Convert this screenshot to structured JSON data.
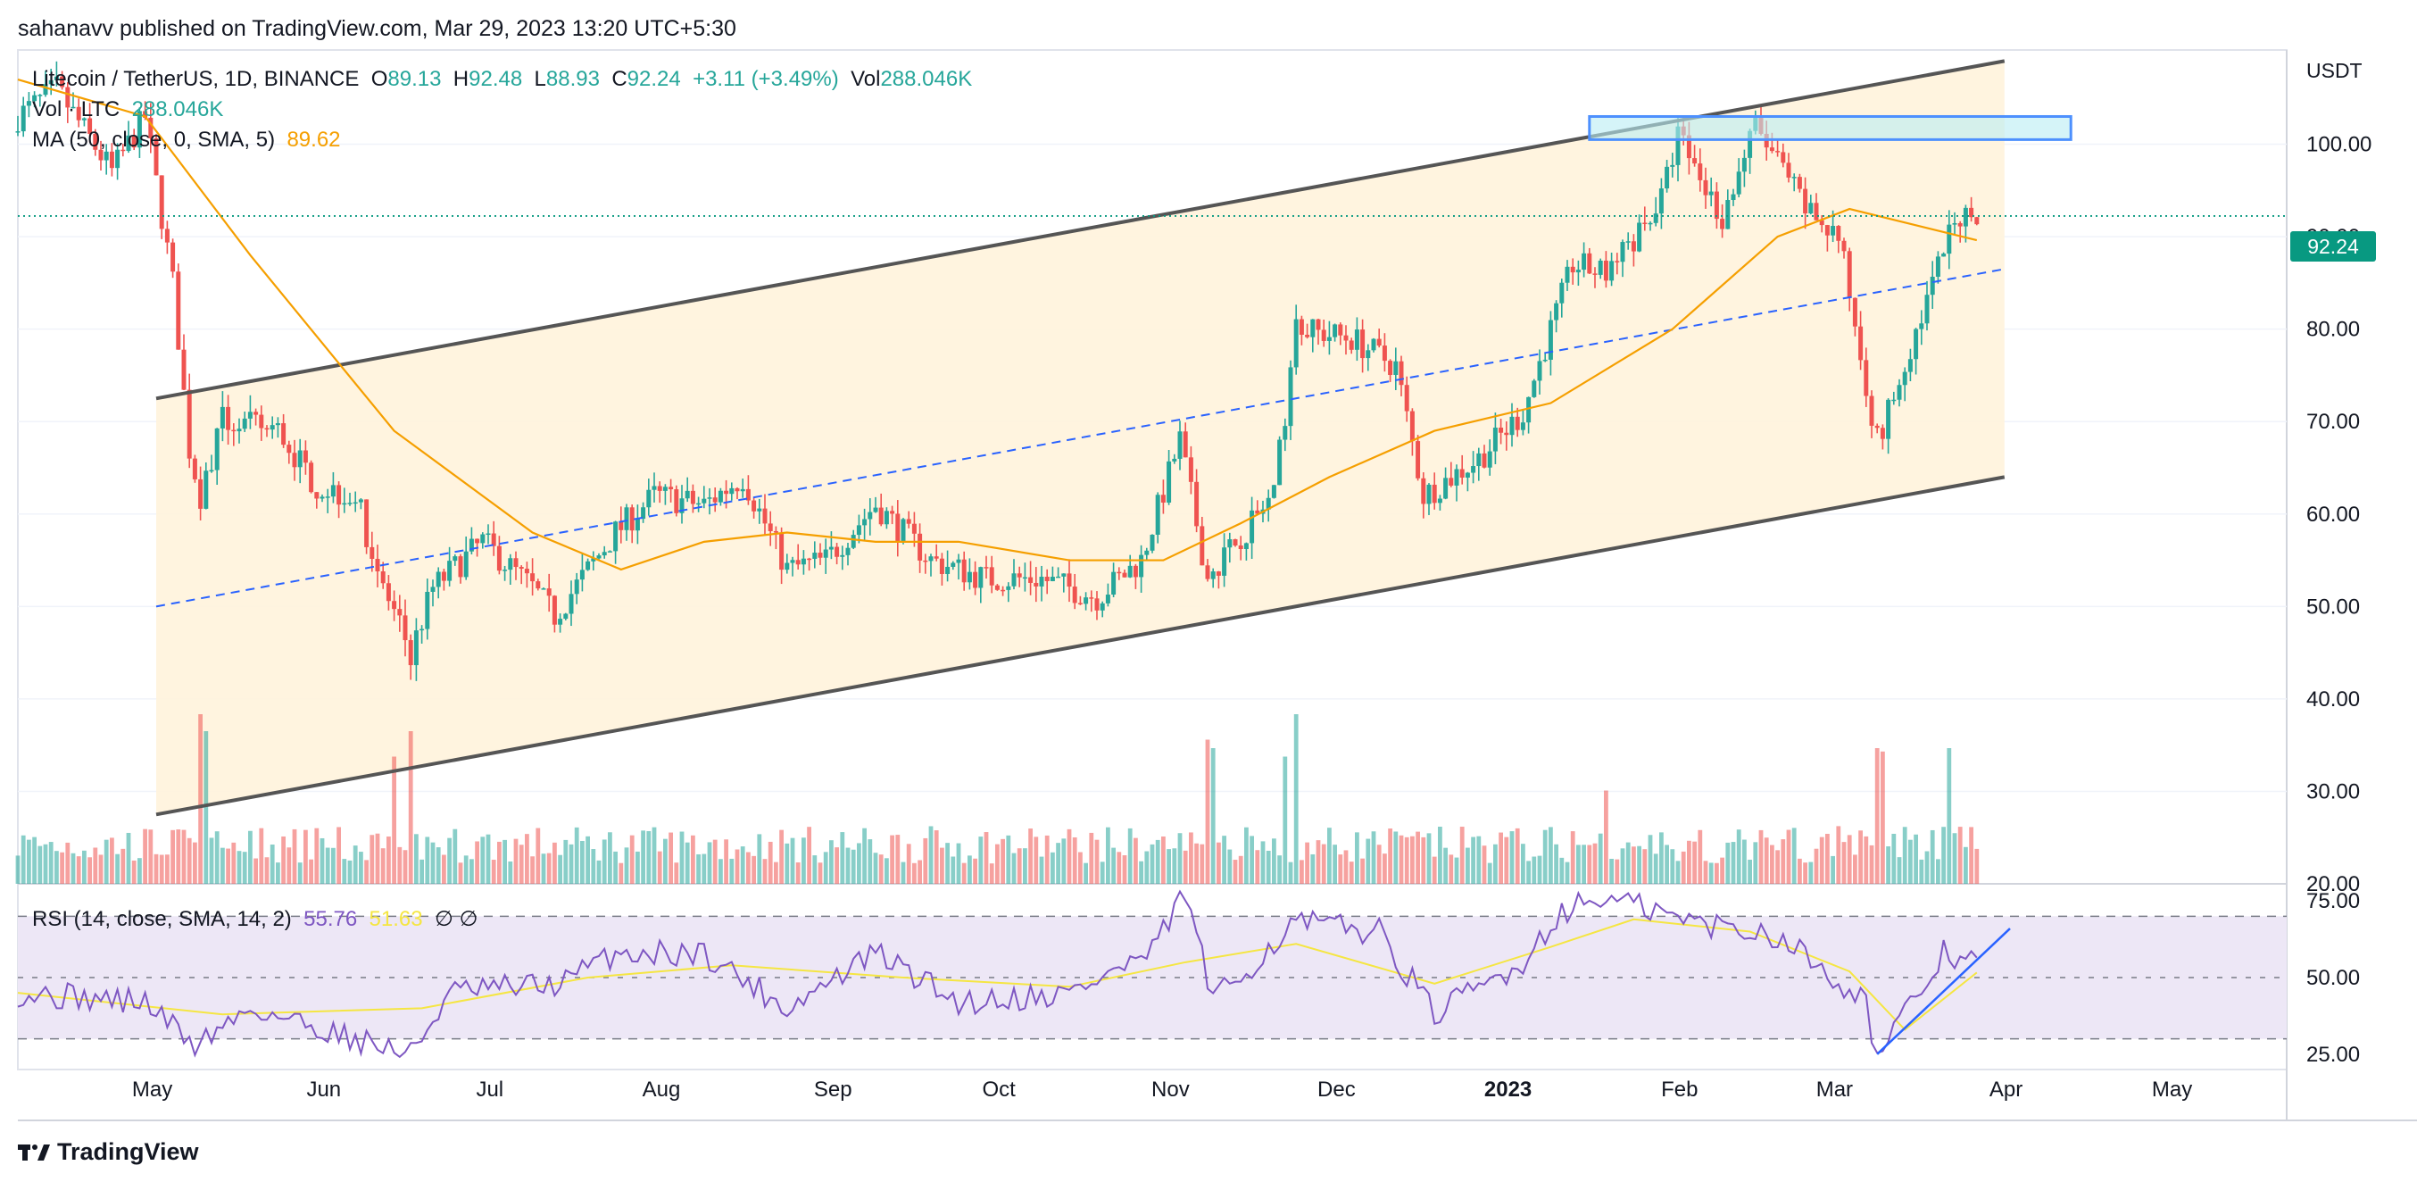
{
  "publisher_line": "sahanavv published on TradingView.com, Mar 29, 2023 13:20 UTC+5:30",
  "branding": "TradingView",
  "header": {
    "symbol": "Litecoin / TetherUS, 1D, BINANCE",
    "o_label": "O",
    "o_value": "89.13",
    "h_label": "H",
    "h_value": "92.48",
    "l_label": "L",
    "l_value": "88.93",
    "c_label": "C",
    "c_value": "92.24",
    "change": "+3.11 (+3.49%)",
    "vol_label": "Vol",
    "vol_value": "288.046K"
  },
  "volume_legend": {
    "label": "Vol · LTC",
    "value": "288.046K"
  },
  "ma_legend": {
    "label": "MA (50, close, 0, SMA, 5)",
    "value": "89.62"
  },
  "rsi_legend": {
    "label": "RSI (14, close, SMA, 14, 2)",
    "value": "55.76",
    "ma_value": "51.63",
    "extra": "∅ ∅"
  },
  "currency": "USDT",
  "last_price": "92.24",
  "colors": {
    "up": "#26a69a",
    "down": "#ef5350",
    "ma": "#f59f00",
    "channel_fill": "#fff3dc",
    "channel_line": "#555555",
    "mid_line": "#2962ff",
    "zone_fill": "#b9ecf3",
    "zone_border": "#4d90fe",
    "rsi_line": "#7e57c2",
    "rsi_ma": "#f5e642",
    "rsi_band": "#ede7f6",
    "last_price": "#089981"
  },
  "chart_data": [
    {
      "type": "candlestick",
      "title": "Litecoin / TetherUS, 1D, BINANCE",
      "ylabel": "USDT",
      "ylim": [
        20,
        110
      ],
      "y_ticks": [
        "100.00",
        "90.00",
        "80.00",
        "70.00",
        "60.00",
        "50.00",
        "40.00",
        "30.00",
        "20.00"
      ],
      "x_ticks": [
        "May",
        "Jun",
        "Jul",
        "Aug",
        "Sep",
        "Oct",
        "Nov",
        "Dec",
        "2023",
        "Feb",
        "Mar",
        "Apr",
        "May"
      ],
      "x_range": [
        "2022-04-08",
        "2023-05-23"
      ],
      "last": 92.24,
      "price_path": [
        [
          "2022-04-08",
          103
        ],
        [
          "2022-04-15",
          106
        ],
        [
          "2022-04-25",
          97
        ],
        [
          "2022-05-01",
          103
        ],
        [
          "2022-05-06",
          85
        ],
        [
          "2022-05-09",
          67
        ],
        [
          "2022-05-11",
          62
        ],
        [
          "2022-05-15",
          70
        ],
        [
          "2022-05-25",
          69
        ],
        [
          "2022-06-01",
          63
        ],
        [
          "2022-06-08",
          62
        ],
        [
          "2022-06-13",
          52
        ],
        [
          "2022-06-18",
          45
        ],
        [
          "2022-06-22",
          52
        ],
        [
          "2022-07-01",
          57
        ],
        [
          "2022-07-10",
          52
        ],
        [
          "2022-07-14",
          49
        ],
        [
          "2022-07-25",
          58
        ],
        [
          "2022-08-01",
          62
        ],
        [
          "2022-08-10",
          61
        ],
        [
          "2022-08-17",
          64
        ],
        [
          "2022-08-25",
          54
        ],
        [
          "2022-09-01",
          55
        ],
        [
          "2022-09-10",
          61
        ],
        [
          "2022-09-20",
          55
        ],
        [
          "2022-09-30",
          53
        ],
        [
          "2022-10-10",
          53
        ],
        [
          "2022-10-20",
          51
        ],
        [
          "2022-10-28",
          55
        ],
        [
          "2022-11-04",
          68
        ],
        [
          "2022-11-09",
          53
        ],
        [
          "2022-11-14",
          57
        ],
        [
          "2022-11-21",
          62
        ],
        [
          "2022-11-25",
          80
        ],
        [
          "2022-12-05",
          79
        ],
        [
          "2022-12-13",
          76
        ],
        [
          "2022-12-18",
          62
        ],
        [
          "2022-12-28",
          66
        ],
        [
          "2023-01-05",
          71
        ],
        [
          "2023-01-14",
          87
        ],
        [
          "2023-01-20",
          86
        ],
        [
          "2023-01-30",
          94
        ],
        [
          "2023-02-02",
          101
        ],
        [
          "2023-02-10",
          92
        ],
        [
          "2023-02-16",
          102
        ],
        [
          "2023-02-25",
          93
        ],
        [
          "2023-03-03",
          90
        ],
        [
          "2023-03-10",
          68
        ],
        [
          "2023-03-13",
          73
        ],
        [
          "2023-03-19",
          83
        ],
        [
          "2023-03-24",
          92
        ],
        [
          "2023-03-28",
          92.24
        ]
      ],
      "ma_path": [
        [
          "2022-04-08",
          107
        ],
        [
          "2022-05-01",
          103
        ],
        [
          "2022-05-20",
          88
        ],
        [
          "2022-06-15",
          69
        ],
        [
          "2022-07-10",
          58
        ],
        [
          "2022-07-26",
          54
        ],
        [
          "2022-08-10",
          57
        ],
        [
          "2022-08-25",
          58
        ],
        [
          "2022-09-10",
          57
        ],
        [
          "2022-09-25",
          57
        ],
        [
          "2022-10-15",
          55
        ],
        [
          "2022-11-01",
          55
        ],
        [
          "2022-11-15",
          59
        ],
        [
          "2022-12-01",
          64
        ],
        [
          "2022-12-20",
          69
        ],
        [
          "2023-01-10",
          72
        ],
        [
          "2023-02-01",
          80
        ],
        [
          "2023-02-20",
          90
        ],
        [
          "2023-03-05",
          93
        ],
        [
          "2023-03-28",
          89.62
        ]
      ],
      "annotations": [
        {
          "type": "channel-line",
          "from": [
            "2022-05-03",
            72.5
          ],
          "to": [
            "2023-04-02",
            109
          ]
        },
        {
          "type": "channel-line",
          "from": [
            "2022-05-03",
            27.5
          ],
          "to": [
            "2023-04-02",
            64
          ]
        },
        {
          "type": "mid-line-dashed",
          "from": [
            "2022-05-03",
            50
          ],
          "to": [
            "2023-04-02",
            86.5
          ]
        },
        {
          "type": "resistance-zone",
          "from": [
            "2023-01-17",
            103
          ],
          "to": [
            "2023-04-14",
            100.5
          ]
        }
      ]
    },
    {
      "type": "bar",
      "title": "Vol · LTC",
      "last": "288.046K",
      "spikes": [
        [
          "2022-05-11",
          1.0
        ],
        [
          "2022-05-12",
          0.9
        ],
        [
          "2022-06-18",
          0.9
        ],
        [
          "2022-06-15",
          0.75
        ],
        [
          "2022-11-09",
          0.85
        ],
        [
          "2022-11-10",
          0.8
        ],
        [
          "2022-11-25",
          1.0
        ],
        [
          "2022-11-23",
          0.75
        ],
        [
          "2023-01-20",
          0.55
        ],
        [
          "2023-03-10",
          0.8
        ],
        [
          "2023-03-11",
          0.78
        ],
        [
          "2023-03-23",
          0.8
        ]
      ]
    },
    {
      "type": "line",
      "title": "RSI (14, close, SMA, 14, 2)",
      "ylim": [
        20,
        80
      ],
      "y_ticks": [
        "75.00",
        "50.00",
        "25.00"
      ],
      "bands": [
        70,
        50,
        30
      ],
      "rsi_path": [
        [
          "2022-04-08",
          45
        ],
        [
          "2022-05-01",
          42
        ],
        [
          "2022-05-10",
          28
        ],
        [
          "2022-05-20",
          40
        ],
        [
          "2022-06-18",
          25
        ],
        [
          "2022-06-25",
          45
        ],
        [
          "2022-07-15",
          48
        ],
        [
          "2022-07-25",
          58
        ],
        [
          "2022-08-10",
          58
        ],
        [
          "2022-08-25",
          40
        ],
        [
          "2022-09-10",
          58
        ],
        [
          "2022-09-25",
          42
        ],
        [
          "2022-10-15",
          45
        ],
        [
          "2022-10-30",
          58
        ],
        [
          "2022-11-05",
          78
        ],
        [
          "2022-11-10",
          42
        ],
        [
          "2022-11-25",
          68
        ],
        [
          "2022-12-10",
          65
        ],
        [
          "2022-12-20",
          38
        ],
        [
          "2023-01-05",
          55
        ],
        [
          "2023-01-12",
          72
        ],
        [
          "2023-01-20",
          76
        ],
        [
          "2023-02-05",
          68
        ],
        [
          "2023-02-20",
          64
        ],
        [
          "2023-03-01",
          52
        ],
        [
          "2023-03-08",
          42
        ],
        [
          "2023-03-10",
          24
        ],
        [
          "2023-03-16",
          40
        ],
        [
          "2023-03-22",
          58
        ],
        [
          "2023-03-28",
          55.76
        ]
      ],
      "rsi_ma_path": [
        [
          "2022-04-08",
          45
        ],
        [
          "2022-05-15",
          38
        ],
        [
          "2022-06-20",
          40
        ],
        [
          "2022-07-20",
          50
        ],
        [
          "2022-08-15",
          54
        ],
        [
          "2022-09-15",
          50
        ],
        [
          "2022-10-15",
          47
        ],
        [
          "2022-11-05",
          55
        ],
        [
          "2022-11-25",
          61
        ],
        [
          "2022-12-20",
          48
        ],
        [
          "2023-01-10",
          60
        ],
        [
          "2023-01-25",
          69
        ],
        [
          "2023-02-15",
          65
        ],
        [
          "2023-03-05",
          52
        ],
        [
          "2023-03-15",
          33
        ],
        [
          "2023-03-28",
          51.63
        ]
      ],
      "annotations": [
        {
          "type": "trendline",
          "from": [
            "2023-03-10",
            25
          ],
          "to": [
            "2023-04-03",
            66
          ]
        }
      ]
    }
  ]
}
